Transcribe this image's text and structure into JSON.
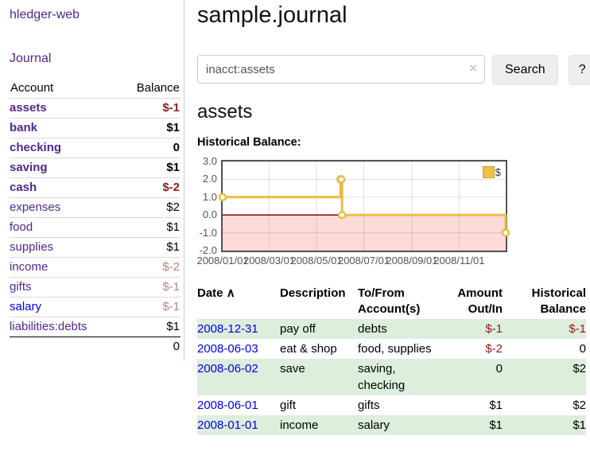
{
  "app": {
    "title": "hledger-web"
  },
  "sidebar": {
    "journal_label": "Journal",
    "accounts_table": {
      "headers": {
        "account": "Account",
        "balance": "Balance"
      },
      "rows": [
        {
          "name": "assets",
          "level": 1,
          "bold": true,
          "balance": "$-1"
        },
        {
          "name": "bank",
          "level": 2,
          "bold": true,
          "balance": "$1"
        },
        {
          "name": "checking",
          "level": 3,
          "bold": true,
          "balance": "0"
        },
        {
          "name": "saving",
          "level": 3,
          "bold": true,
          "balance": "$1"
        },
        {
          "name": "cash",
          "level": 2,
          "bold": true,
          "balance": "$-2"
        },
        {
          "name": "expenses",
          "level": 1,
          "bold": false,
          "balance": "$2"
        },
        {
          "name": "food",
          "level": 2,
          "bold": false,
          "balance": "$1"
        },
        {
          "name": "supplies",
          "level": 2,
          "bold": false,
          "balance": "$1"
        },
        {
          "name": "income",
          "level": 1,
          "bold": false,
          "balance": "$-2"
        },
        {
          "name": "gifts",
          "level": 2,
          "bold": false,
          "balance": "$-1"
        },
        {
          "name": "salary",
          "level": 2,
          "bold": false,
          "alt_color": true,
          "balance": "$-1"
        },
        {
          "name": "liabilities:debts",
          "level": 1,
          "bold": false,
          "balance": "$1"
        }
      ],
      "total": "0"
    }
  },
  "header": {
    "title": "sample.journal"
  },
  "search": {
    "value": "inacct:assets",
    "clear_icon": "×",
    "button_label": "Search",
    "help_label": "?"
  },
  "account_page": {
    "title": "assets",
    "chart_label": "Historical Balance:"
  },
  "chart_data": {
    "type": "line",
    "style": "step",
    "title": "Historical Balance",
    "legend": "$",
    "legend_position": "top-right",
    "grid": true,
    "x_range": [
      "2008-01-01",
      "2008-12-31"
    ],
    "y_range": [
      -2,
      3
    ],
    "y_ticks": [
      "3.0",
      "2.0",
      "1.0",
      "0.0",
      "-1.0",
      "-2.0"
    ],
    "x_ticks": [
      "2008/01/01",
      "2008/03/01",
      "2008/05/01",
      "2008/07/01",
      "2008/09/01",
      "2008/11/01"
    ],
    "series": [
      {
        "name": "$",
        "color": "#e8bd45",
        "points": [
          [
            "2008-01-01",
            1
          ],
          [
            "2008-06-01",
            2
          ],
          [
            "2008-06-02",
            2
          ],
          [
            "2008-06-03",
            0
          ],
          [
            "2008-12-31",
            -1
          ]
        ]
      }
    ],
    "negative_region_color": "#fcdada",
    "zero_line_color": "#8b0000"
  },
  "register": {
    "sort_indicator": "∧",
    "columns": [
      {
        "label": "Date"
      },
      {
        "label": "Description"
      },
      {
        "label": "To/From Account(s)"
      },
      {
        "label": "Amount Out/In"
      },
      {
        "label": "Historical Balance"
      }
    ],
    "rows": [
      {
        "date": "2008-12-31",
        "description": "pay off",
        "accounts": "debts",
        "amount": "$-1",
        "balance": "$-1"
      },
      {
        "date": "2008-06-03",
        "description": "eat & shop",
        "accounts": "food, supplies",
        "amount": "$-2",
        "balance": "0"
      },
      {
        "date": "2008-06-02",
        "description": "save",
        "accounts": "saving, checking",
        "amount": "0",
        "balance": "$2"
      },
      {
        "date": "2008-06-01",
        "description": "gift",
        "accounts": "gifts",
        "amount": "$1",
        "balance": "$2"
      },
      {
        "date": "2008-01-01",
        "description": "income",
        "accounts": "salary",
        "amount": "$1",
        "balance": "$1"
      }
    ]
  }
}
